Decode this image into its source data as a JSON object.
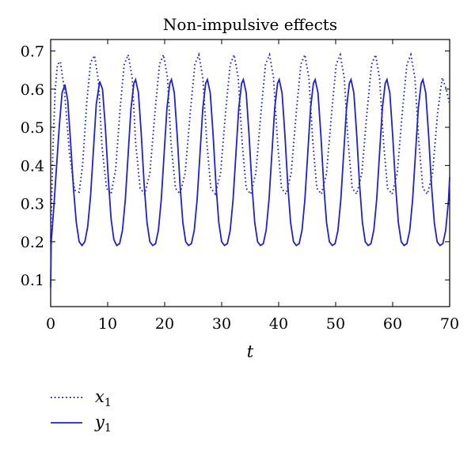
{
  "chart_data": {
    "type": "line",
    "title": "Non-impulsive effects",
    "xlabel": "t",
    "ylabel": "",
    "xlim": [
      0,
      70
    ],
    "ylim": [
      0.03,
      0.73
    ],
    "xticks": [
      0,
      10,
      20,
      30,
      40,
      50,
      60,
      70
    ],
    "xtick_labels": [
      "0",
      "10",
      "20",
      "30",
      "40",
      "50",
      "60",
      "70"
    ],
    "yticks": [
      0.1,
      0.2,
      0.3,
      0.4,
      0.5,
      0.6,
      0.7
    ],
    "ytick_labels": [
      "0.1",
      "0.2",
      "0.3",
      "0.4",
      "0.5",
      "0.6",
      "0.7"
    ],
    "grid": false,
    "legend_position": "below-left",
    "series": [
      {
        "name": "x",
        "subscript": "1",
        "style": "dotted",
        "color": "#1f1fd6",
        "x": [
          0,
          0.4,
          0.8,
          1.2,
          1.7,
          2.4,
          3.3,
          4.2,
          5.0,
          5.6,
          6.3,
          7.0,
          7.7,
          8.4,
          9.0,
          9.8,
          10.6,
          11.4,
          12.2,
          12.9,
          13.6,
          14.3,
          14.9,
          15.7,
          16.5,
          17.4,
          18.3,
          19.1,
          19.8,
          20.5,
          21.1,
          21.9,
          22.7,
          23.6,
          24.5,
          25.3,
          26.0,
          26.7,
          27.4,
          28.1,
          28.9,
          29.8,
          30.7,
          31.5,
          32.2,
          32.9,
          33.6,
          34.3,
          35.1,
          36.0,
          36.9,
          37.7,
          38.4,
          39.1,
          39.8,
          40.5,
          41.3,
          42.2,
          43.1,
          43.9,
          44.6,
          45.3,
          46.0,
          46.7,
          47.5,
          48.4,
          49.3,
          50.1,
          50.8,
          51.5,
          52.2,
          52.9,
          53.7,
          54.6,
          55.5,
          56.3,
          57.0,
          57.7,
          58.4,
          59.1,
          59.9,
          60.8,
          61.7,
          62.5,
          63.2,
          63.9,
          64.6,
          65.3,
          66.1,
          67.0,
          67.9,
          68.7,
          69.4,
          70.0
        ],
        "y": [
          0.2,
          0.45,
          0.6,
          0.665,
          0.672,
          0.6,
          0.43,
          0.335,
          0.33,
          0.4,
          0.56,
          0.67,
          0.688,
          0.62,
          0.45,
          0.34,
          0.325,
          0.39,
          0.55,
          0.665,
          0.69,
          0.63,
          0.46,
          0.34,
          0.325,
          0.38,
          0.54,
          0.665,
          0.69,
          0.63,
          0.46,
          0.34,
          0.325,
          0.38,
          0.54,
          0.665,
          0.69,
          0.63,
          0.46,
          0.34,
          0.325,
          0.38,
          0.54,
          0.665,
          0.69,
          0.63,
          0.46,
          0.34,
          0.325,
          0.38,
          0.54,
          0.665,
          0.69,
          0.63,
          0.46,
          0.34,
          0.325,
          0.38,
          0.54,
          0.665,
          0.69,
          0.63,
          0.46,
          0.34,
          0.325,
          0.38,
          0.54,
          0.665,
          0.69,
          0.63,
          0.46,
          0.34,
          0.325,
          0.38,
          0.54,
          0.665,
          0.69,
          0.63,
          0.46,
          0.34,
          0.325,
          0.38,
          0.54,
          0.665,
          0.69,
          0.63,
          0.46,
          0.34,
          0.325,
          0.38,
          0.54,
          0.63,
          0.6,
          0.56
        ]
      },
      {
        "name": "y",
        "subscript": "1",
        "style": "solid",
        "color": "#1f1fd6",
        "x": [
          0,
          0.1,
          0.3,
          0.6,
          1.0,
          1.5,
          2.0,
          2.5,
          3.0,
          3.5,
          4.0,
          4.5,
          5.0,
          5.5,
          6.0,
          6.5,
          7.0,
          7.5,
          8.0,
          8.6,
          9.1,
          9.6,
          10.1,
          10.6,
          11.1,
          11.6,
          12.1,
          12.6,
          13.1,
          13.6,
          14.1,
          14.6,
          14.9,
          15.4,
          15.9,
          16.4,
          16.9,
          17.4,
          17.9,
          18.4,
          18.9,
          19.4,
          19.9,
          20.4,
          20.9,
          21.2,
          21.7,
          22.2,
          22.7,
          23.2,
          23.7,
          24.2,
          24.7,
          25.2,
          25.7,
          26.2,
          26.7,
          27.2,
          27.5,
          28.0,
          28.5,
          29.0,
          29.5,
          30.0,
          30.5,
          31.0,
          31.5,
          32.0,
          32.5,
          33.0,
          33.5,
          33.8,
          34.3,
          34.8,
          35.3,
          35.8,
          36.3,
          36.8,
          37.3,
          37.8,
          38.3,
          38.8,
          39.3,
          39.8,
          40.1,
          40.6,
          41.1,
          41.6,
          42.1,
          42.6,
          43.1,
          43.6,
          44.1,
          44.6,
          45.1,
          45.6,
          46.1,
          46.4,
          46.9,
          47.4,
          47.9,
          48.4,
          48.9,
          49.4,
          49.9,
          50.4,
          50.9,
          51.4,
          51.9,
          52.4,
          52.7,
          53.2,
          53.7,
          54.2,
          54.7,
          55.2,
          55.7,
          56.2,
          56.7,
          57.2,
          57.7,
          58.2,
          58.7,
          59.0,
          59.5,
          60.0,
          60.5,
          61.0,
          61.5,
          62.0,
          62.5,
          63.0,
          63.5,
          64.0,
          64.5,
          65.0,
          65.3,
          65.8,
          66.3,
          66.8,
          67.3,
          67.8,
          68.3,
          68.8,
          69.3,
          69.8,
          70.0
        ],
        "y": [
          0.08,
          0.2,
          0.24,
          0.3,
          0.39,
          0.5,
          0.59,
          0.612,
          0.57,
          0.46,
          0.34,
          0.25,
          0.2,
          0.19,
          0.2,
          0.24,
          0.32,
          0.44,
          0.56,
          0.62,
          0.6,
          0.5,
          0.37,
          0.26,
          0.205,
          0.19,
          0.195,
          0.23,
          0.31,
          0.43,
          0.55,
          0.615,
          0.625,
          0.59,
          0.48,
          0.35,
          0.25,
          0.2,
          0.19,
          0.195,
          0.23,
          0.31,
          0.43,
          0.55,
          0.615,
          0.625,
          0.59,
          0.48,
          0.35,
          0.25,
          0.2,
          0.19,
          0.195,
          0.23,
          0.31,
          0.43,
          0.55,
          0.615,
          0.625,
          0.59,
          0.48,
          0.35,
          0.25,
          0.2,
          0.19,
          0.195,
          0.23,
          0.31,
          0.43,
          0.55,
          0.615,
          0.625,
          0.59,
          0.48,
          0.35,
          0.25,
          0.2,
          0.19,
          0.195,
          0.23,
          0.31,
          0.43,
          0.55,
          0.615,
          0.625,
          0.59,
          0.48,
          0.35,
          0.25,
          0.2,
          0.19,
          0.195,
          0.23,
          0.31,
          0.43,
          0.55,
          0.615,
          0.625,
          0.59,
          0.48,
          0.35,
          0.25,
          0.2,
          0.19,
          0.195,
          0.23,
          0.31,
          0.43,
          0.55,
          0.615,
          0.625,
          0.59,
          0.48,
          0.35,
          0.25,
          0.2,
          0.19,
          0.195,
          0.23,
          0.31,
          0.43,
          0.55,
          0.615,
          0.625,
          0.59,
          0.48,
          0.35,
          0.25,
          0.2,
          0.19,
          0.195,
          0.23,
          0.31,
          0.43,
          0.55,
          0.615,
          0.625,
          0.59,
          0.48,
          0.35,
          0.25,
          0.2,
          0.19,
          0.195,
          0.23,
          0.31,
          0.37
        ]
      }
    ]
  }
}
